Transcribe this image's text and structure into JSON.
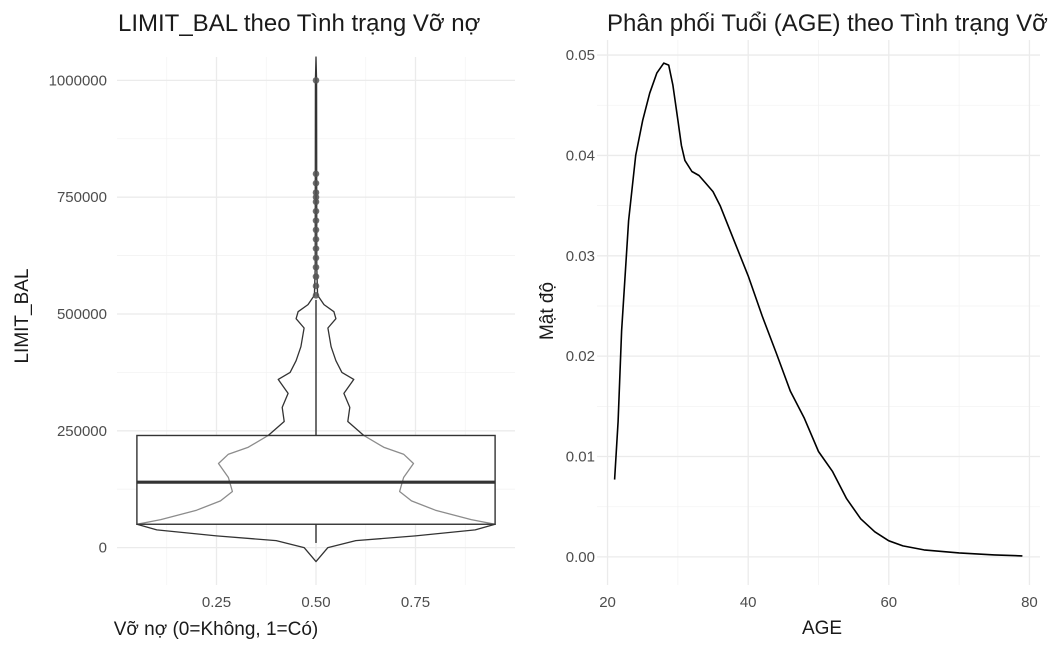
{
  "chart_data": [
    {
      "type": "violin+boxplot",
      "title": "LIMIT_BAL theo Tình trạng Vỡ nợ",
      "xlabel": "Vỡ nợ (0=Không, 1=Có)",
      "ylabel": "LIMIT_BAL",
      "xlim": [
        0.0,
        1.0
      ],
      "ylim": [
        -80000,
        1050000
      ],
      "x_ticks": [
        "0.25",
        "0.50",
        "0.75"
      ],
      "x_tick_values": [
        0.25,
        0.5,
        0.75
      ],
      "y_ticks": [
        "0",
        "250000",
        "500000",
        "750000",
        "1000000"
      ],
      "y_tick_values": [
        0,
        250000,
        500000,
        750000,
        1000000
      ],
      "grid": true,
      "box": {
        "x_min": 0.05,
        "x_max": 0.95,
        "q1": 50000,
        "median": 140000,
        "q3": 240000,
        "whisker_low": 10000,
        "whisker_high": 530000
      },
      "violin_center": 0.5,
      "violin_profile": [
        {
          "y": -30000,
          "w": 0.0
        },
        {
          "y": 0,
          "w": 0.03
        },
        {
          "y": 15000,
          "w": 0.1
        },
        {
          "y": 25000,
          "w": 0.25
        },
        {
          "y": 38000,
          "w": 0.4
        },
        {
          "y": 50000,
          "w": 0.45
        },
        {
          "y": 60000,
          "w": 0.39
        },
        {
          "y": 80000,
          "w": 0.3
        },
        {
          "y": 100000,
          "w": 0.24
        },
        {
          "y": 120000,
          "w": 0.21
        },
        {
          "y": 150000,
          "w": 0.22
        },
        {
          "y": 180000,
          "w": 0.245
        },
        {
          "y": 200000,
          "w": 0.22
        },
        {
          "y": 215000,
          "w": 0.17
        },
        {
          "y": 240000,
          "w": 0.12
        },
        {
          "y": 270000,
          "w": 0.08
        },
        {
          "y": 300000,
          "w": 0.085
        },
        {
          "y": 330000,
          "w": 0.07
        },
        {
          "y": 360000,
          "w": 0.095
        },
        {
          "y": 375000,
          "w": 0.065
        },
        {
          "y": 400000,
          "w": 0.05
        },
        {
          "y": 430000,
          "w": 0.038
        },
        {
          "y": 470000,
          "w": 0.03
        },
        {
          "y": 490000,
          "w": 0.05
        },
        {
          "y": 505000,
          "w": 0.045
        },
        {
          "y": 520000,
          "w": 0.02
        },
        {
          "y": 540000,
          "w": 0.004
        },
        {
          "y": 600000,
          "w": 0.002
        },
        {
          "y": 1000000,
          "w": 0.0015
        },
        {
          "y": 1050000,
          "w": 0.0
        }
      ],
      "outliers": [
        540000,
        560000,
        580000,
        600000,
        620000,
        640000,
        660000,
        680000,
        700000,
        720000,
        740000,
        750000,
        760000,
        780000,
        800000,
        1000000
      ]
    },
    {
      "type": "line",
      "title": "Phân phối Tuổi (AGE) theo Tình trạng Vỡ nợ",
      "xlabel": "AGE",
      "ylabel": "Mật độ",
      "xlim": [
        18.5,
        81.5
      ],
      "ylim": [
        -0.0028,
        0.0515
      ],
      "x_ticks": [
        "20",
        "40",
        "60",
        "80"
      ],
      "x_tick_values": [
        20,
        40,
        60,
        80
      ],
      "y_ticks": [
        "0.00",
        "0.01",
        "0.02",
        "0.03",
        "0.04",
        "0.05"
      ],
      "y_tick_values": [
        0,
        0.01,
        0.02,
        0.03,
        0.04,
        0.05
      ],
      "grid": true,
      "x": [
        21,
        21.5,
        22,
        23,
        24,
        25,
        26,
        27,
        28,
        28.7,
        29.3,
        30,
        30.5,
        31,
        32,
        33,
        34,
        35,
        36,
        38,
        40,
        42,
        44,
        46,
        48,
        50,
        52,
        54,
        56,
        58,
        60,
        62,
        65,
        70,
        75,
        79
      ],
      "y": [
        0.0077,
        0.0135,
        0.0225,
        0.0335,
        0.04,
        0.0435,
        0.0462,
        0.0482,
        0.0492,
        0.049,
        0.047,
        0.0435,
        0.041,
        0.0395,
        0.0384,
        0.038,
        0.0372,
        0.0364,
        0.035,
        0.0315,
        0.028,
        0.024,
        0.0203,
        0.0165,
        0.0138,
        0.0105,
        0.0085,
        0.0058,
        0.0038,
        0.0025,
        0.0016,
        0.0011,
        0.0007,
        0.0004,
        0.0002,
        0.0001
      ]
    }
  ]
}
